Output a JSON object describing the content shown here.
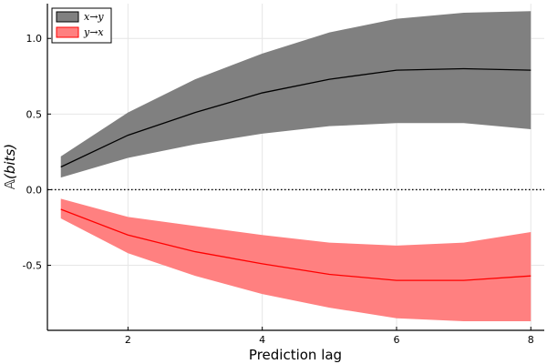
{
  "chart_data": {
    "type": "area",
    "xlabel": "Prediction lag",
    "ylabel": "𝔸(bits)",
    "xlim": [
      0.8,
      8.2
    ],
    "ylim": [
      -0.93,
      1.23
    ],
    "xticks": [
      2,
      4,
      6,
      8
    ],
    "xtick_labels": [
      "2",
      "4",
      "6",
      "8"
    ],
    "yticks": [
      -0.5,
      0.0,
      0.5,
      1.0
    ],
    "ytick_labels": [
      "-0.5",
      "0.0",
      "0.5",
      "1.0"
    ],
    "grid": true,
    "legend_position": "top-left",
    "reference_line": {
      "y": 0.0,
      "style": "dotted"
    },
    "x": [
      1,
      2,
      3,
      4,
      5,
      6,
      7,
      8
    ],
    "series": [
      {
        "name": "x→y",
        "line_color": "#000000",
        "band_color": "#808080",
        "mean": [
          0.15,
          0.36,
          0.51,
          0.64,
          0.73,
          0.79,
          0.8,
          0.79
        ],
        "upper": [
          0.22,
          0.51,
          0.73,
          0.9,
          1.04,
          1.13,
          1.17,
          1.18
        ],
        "lower": [
          0.08,
          0.21,
          0.3,
          0.37,
          0.42,
          0.44,
          0.44,
          0.4
        ]
      },
      {
        "name": "y→x",
        "line_color": "#ff0000",
        "band_color": "#ff8080",
        "mean": [
          -0.13,
          -0.3,
          -0.41,
          -0.49,
          -0.56,
          -0.6,
          -0.6,
          -0.57
        ],
        "upper": [
          -0.06,
          -0.18,
          -0.24,
          -0.3,
          -0.35,
          -0.37,
          -0.35,
          -0.28
        ],
        "lower": [
          -0.19,
          -0.42,
          -0.57,
          -0.69,
          -0.78,
          -0.85,
          -0.87,
          -0.87
        ]
      }
    ]
  }
}
